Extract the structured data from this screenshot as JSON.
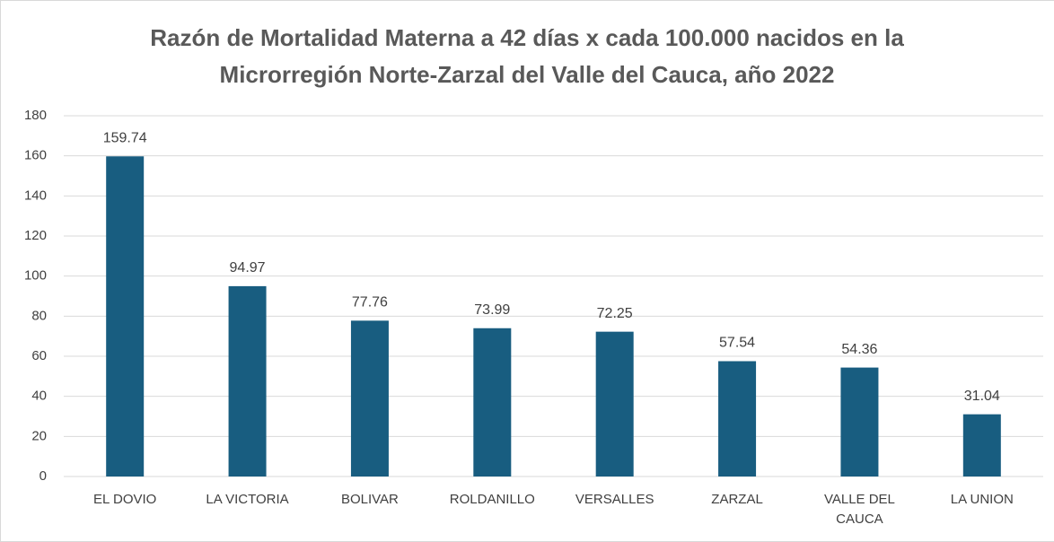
{
  "chart_data": {
    "type": "bar",
    "title": "Razón de Mortalidad Materna a 42 días x cada 100.000 nacidos en la\nMicrorregión Norte-Zarzal del Valle del Cauca, año 2022",
    "categories": [
      "EL DOVIO",
      "LA VICTORIA",
      "BOLIVAR",
      "ROLDANILLO",
      "VERSALLES",
      "ZARZAL",
      "VALLE DEL CAUCA",
      "LA UNION"
    ],
    "values": [
      159.74,
      94.97,
      77.76,
      73.99,
      72.25,
      57.54,
      54.36,
      31.04
    ],
    "color": "#185d80",
    "ylim": [
      0,
      180
    ],
    "yticks": [
      0,
      20,
      40,
      60,
      80,
      100,
      120,
      140,
      160,
      180
    ],
    "grid": true
  }
}
